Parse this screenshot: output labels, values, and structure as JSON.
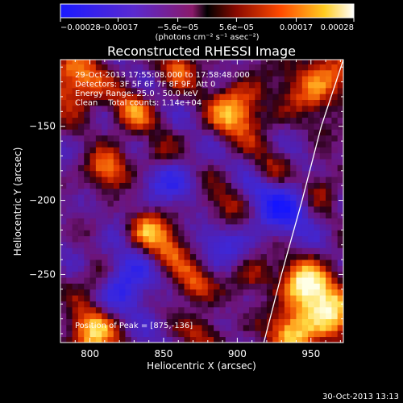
{
  "chart_data": {
    "type": "heatmap",
    "title": "Reconstructed RHESSI Image",
    "xlabel": "Heliocentric X (arcsec)",
    "ylabel": "Heliocentric Y (arcsec)",
    "xlim": [
      780,
      972
    ],
    "ylim": [
      -296,
      -105
    ],
    "xticks": [
      800,
      850,
      900,
      950
    ],
    "yticks": [
      -150,
      -200,
      -250
    ],
    "xtick_labels": [
      "800",
      "850",
      "900",
      "950"
    ],
    "ytick_labels": [
      "−150",
      "−200",
      "−250"
    ],
    "colorbar": {
      "range": [
        -0.00028,
        0.00028
      ],
      "ticks": [
        -0.00028,
        -0.00017,
        -5.6e-05,
        5.6e-05,
        0.00017,
        0.00028
      ],
      "tick_labels": [
        "−0.00028",
        "−0.00017",
        "−5.6e−05",
        "5.6e−05",
        "0.00017",
        "0.00028"
      ],
      "units": "(photons cm⁻² s⁻¹ asec⁻²)"
    },
    "annotations": [
      "29-Oct-2013 17:55:08.000 to 17:58:48.000",
      "Detectors: 3F 5F 6F 7F 8F 9F, Att 0",
      "Energy Range: 25.0 - 50.0 keV",
      "Clean    Total counts: 1.14e+04"
    ],
    "peak_label": "Position of Peak = [875,-136]",
    "peak": [
      875,
      -136
    ],
    "limb_curve": [
      [
        918,
        -296
      ],
      [
        930,
        -250
      ],
      [
        944,
        -200
      ],
      [
        957,
        -150
      ],
      [
        972,
        -105
      ]
    ],
    "blobs": [
      [
        800,
        -290,
        0.95,
        12
      ],
      [
        790,
        -120,
        0.85,
        14
      ],
      [
        900,
        -140,
        0.85,
        14
      ],
      [
        955,
        -120,
        0.75,
        16
      ],
      [
        838,
        -220,
        0.85,
        10
      ],
      [
        852,
        -235,
        0.75,
        10
      ],
      [
        870,
        -255,
        0.75,
        10
      ],
      [
        812,
        -180,
        0.75,
        10
      ],
      [
        828,
        -140,
        0.65,
        10
      ],
      [
        960,
        -275,
        0.95,
        16
      ],
      [
        945,
        -255,
        0.8,
        12
      ],
      [
        955,
        -190,
        0.6,
        10
      ],
      [
        925,
        -180,
        0.55,
        10
      ],
      [
        890,
        -205,
        0.45,
        12
      ],
      [
        860,
        -110,
        0.6,
        10
      ],
      [
        935,
        -290,
        0.8,
        10
      ],
      [
        880,
        -290,
        0.45,
        10
      ],
      [
        805,
        -250,
        0.55,
        10
      ],
      [
        845,
        -170,
        0.55,
        10
      ],
      [
        912,
        -250,
        0.45,
        9
      ]
    ],
    "minima": [
      [
        930,
        -200,
        -0.75,
        16
      ],
      [
        825,
        -250,
        -0.7,
        16
      ],
      [
        850,
        -185,
        -0.5,
        14
      ],
      [
        885,
        -230,
        -0.45,
        12
      ]
    ]
  },
  "footer": {
    "timestamp": "30-Oct-2013 13:13"
  }
}
